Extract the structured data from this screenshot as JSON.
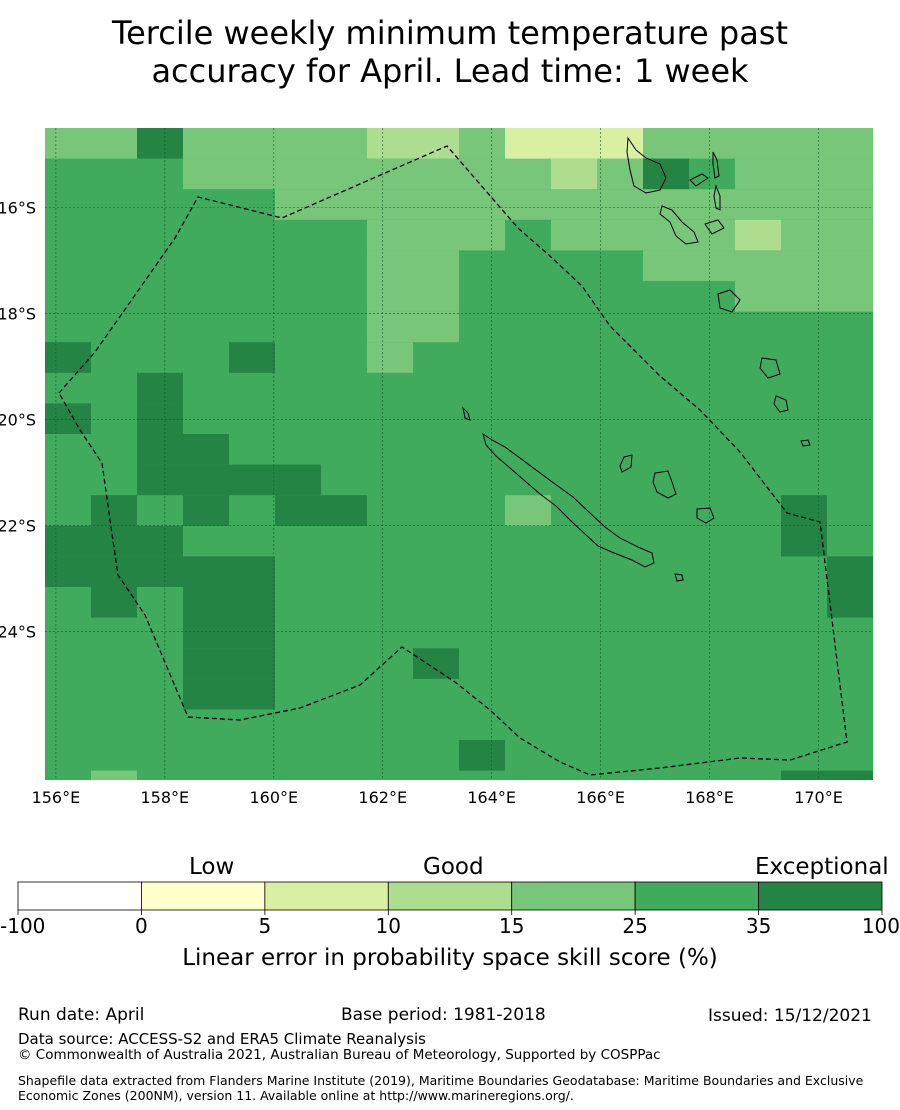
{
  "title": {
    "line1": "Tercile weekly minimum temperature past",
    "line2": "accuracy for April. Lead time: 1 week"
  },
  "map": {
    "lon_range": [
      155.8,
      171.0
    ],
    "lat_range": [
      -26.8,
      -14.5
    ],
    "lon_ticks": [
      "156°E",
      "158°E",
      "160°E",
      "162°E",
      "164°E",
      "166°E",
      "168°E",
      "170°E"
    ],
    "lon_tick_values": [
      156,
      158,
      160,
      162,
      164,
      166,
      168,
      170
    ],
    "lat_ticks": [
      "16°S",
      "18°S",
      "20°S",
      "22°S",
      "24°S"
    ],
    "lat_tick_values": [
      -16,
      -18,
      -20,
      -22,
      -24
    ],
    "background_class": "25-35",
    "eez_boundary_style": "dashed",
    "land_outline": "thin black"
  },
  "colorbar": {
    "category_labels": {
      "low": "Low",
      "good": "Good",
      "exceptional": "Exceptional"
    },
    "boundaries": [
      "-100",
      "0",
      "5",
      "10",
      "15",
      "25",
      "35",
      "100"
    ],
    "colors": [
      "#ffffff",
      "#ffffcc",
      "#d9f0a3",
      "#addd8e",
      "#78c679",
      "#41ab5d",
      "#238443"
    ],
    "label": "Linear error in probability space skill score (%)"
  },
  "footer": {
    "run_date": "Run date: April",
    "base_period": "Base period: 1981-2018",
    "issued": "Issued: 15/12/2021",
    "data_source": "Data source: ACCESS-S2 and ERA5 Climate Reanalysis",
    "copyright": "© Commonwealth of Australia 2021, Australian Bureau of Meteorology, Supported by COSPPac",
    "shapefile": "Shapefile data extracted from Flanders Marine Institute (2019), Maritime Boundaries Geodatabase: Maritime Boundaries and Exclusive Economic Zones (200NM), version 11. Available online at http://www.marineregions.org/."
  }
}
